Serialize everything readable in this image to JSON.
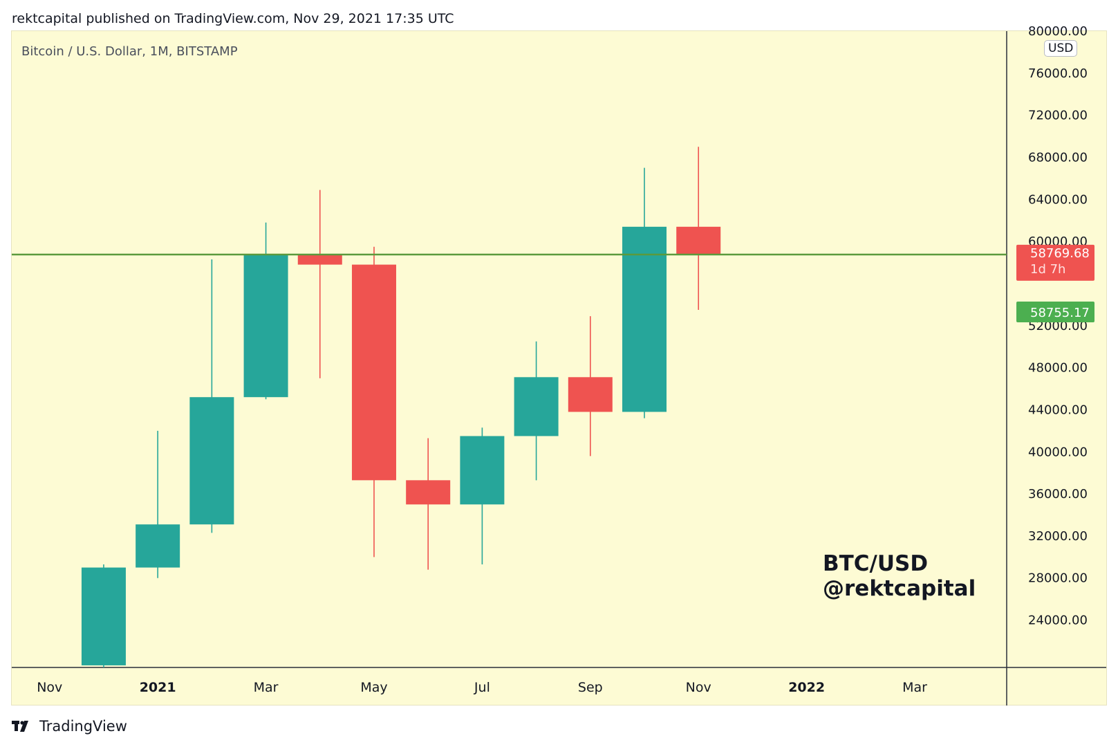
{
  "header": {
    "publish_line": "rektcapital published on TradingView.com, Nov 29, 2021 17:35 UTC"
  },
  "chart": {
    "symbol_line": "Bitcoin / U.S. Dollar, 1M, BITSTAMP",
    "currency_badge": "USD",
    "watermark_line1": "BTC/USD",
    "watermark_line2": "@rektcapital"
  },
  "footer": {
    "brand": "TradingView"
  },
  "colors": {
    "background": "#fdfbd4",
    "up": "#26a69a",
    "down": "#ef5350",
    "level_line": "#5b9a3c",
    "current_price_label": "#ef5350",
    "level_label": "#4caf50",
    "axis_text": "#131722"
  },
  "chart_data": {
    "type": "candlestick",
    "title": "Bitcoin / U.S. Dollar, 1M, BITSTAMP",
    "ylim": [
      19500,
      80000
    ],
    "y_ticks": [
      "24000.00",
      "28000.00",
      "32000.00",
      "36000.00",
      "40000.00",
      "44000.00",
      "48000.00",
      "52000.00",
      "60000.00",
      "64000.00",
      "68000.00",
      "72000.00",
      "76000.00",
      "80000.00"
    ],
    "y_tick_values": [
      24000,
      28000,
      32000,
      36000,
      40000,
      44000,
      48000,
      52000,
      60000,
      64000,
      68000,
      72000,
      76000,
      80000
    ],
    "x_ticks": [
      {
        "label": "Nov",
        "month_index": 0,
        "bold": false
      },
      {
        "label": "2021",
        "month_index": 2,
        "bold": true
      },
      {
        "label": "Mar",
        "month_index": 4,
        "bold": false
      },
      {
        "label": "May",
        "month_index": 6,
        "bold": false
      },
      {
        "label": "Jul",
        "month_index": 8,
        "bold": false
      },
      {
        "label": "Sep",
        "month_index": 10,
        "bold": false
      },
      {
        "label": "Nov",
        "month_index": 12,
        "bold": false
      },
      {
        "label": "2022",
        "month_index": 14,
        "bold": true
      },
      {
        "label": "Mar",
        "month_index": 16,
        "bold": false
      }
    ],
    "month_range": [
      -0.7,
      17.7
    ],
    "candles": [
      {
        "month": "Dec 2020",
        "month_index": 1,
        "open": 19700,
        "high": 29300,
        "low": 17600,
        "close": 29000
      },
      {
        "month": "Jan 2021",
        "month_index": 2,
        "open": 29000,
        "high": 42000,
        "low": 28000,
        "close": 33100
      },
      {
        "month": "Feb 2021",
        "month_index": 3,
        "open": 33100,
        "high": 58300,
        "low": 32300,
        "close": 45200
      },
      {
        "month": "Mar 2021",
        "month_index": 4,
        "open": 45200,
        "high": 61800,
        "low": 45000,
        "close": 58800
      },
      {
        "month": "Apr 2021",
        "month_index": 5,
        "open": 58800,
        "high": 64900,
        "low": 47000,
        "close": 57800
      },
      {
        "month": "May 2021",
        "month_index": 6,
        "open": 57800,
        "high": 59500,
        "low": 30000,
        "close": 37300
      },
      {
        "month": "Jun 2021",
        "month_index": 7,
        "open": 37300,
        "high": 41300,
        "low": 28800,
        "close": 35000
      },
      {
        "month": "Jul 2021",
        "month_index": 8,
        "open": 35000,
        "high": 42300,
        "low": 29300,
        "close": 41500
      },
      {
        "month": "Aug 2021",
        "month_index": 9,
        "open": 41500,
        "high": 50500,
        "low": 37300,
        "close": 47100
      },
      {
        "month": "Sep 2021",
        "month_index": 10,
        "open": 47100,
        "high": 52900,
        "low": 39600,
        "close": 43800
      },
      {
        "month": "Oct 2021",
        "month_index": 11,
        "open": 43800,
        "high": 67000,
        "low": 43200,
        "close": 61400
      },
      {
        "month": "Nov 2021",
        "month_index": 12,
        "open": 61400,
        "high": 69000,
        "low": 53500,
        "close": 58800
      }
    ],
    "horizontal_level": 58755.17,
    "price_labels": {
      "current_price": "58769.68",
      "countdown": "1d 7h",
      "level_price": "58755.17",
      "current_price_value": 58769.68,
      "level_price_value": 58755.17
    }
  }
}
